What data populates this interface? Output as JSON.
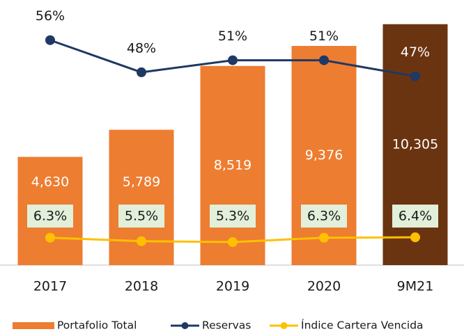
{
  "chart_data": {
    "type": "bar",
    "categories": [
      "2017",
      "2018",
      "2019",
      "2020",
      "9M21"
    ],
    "series": [
      {
        "name": "Portafolio Total",
        "type": "bar",
        "colors": [
          "#ed7d31",
          "#ed7d31",
          "#ed7d31",
          "#ed7d31",
          "#6b3410"
        ],
        "values": [
          4630,
          5789,
          8519,
          9376,
          10305
        ],
        "value_labels": [
          "4,630",
          "5,789",
          "8,519",
          "9,376",
          "10,305"
        ]
      },
      {
        "name": "Reservas",
        "type": "line",
        "axis": "y2",
        "color": "#1f3864",
        "values": [
          56,
          48,
          51,
          51,
          47
        ],
        "value_labels": [
          "56%",
          "48%",
          "51%",
          "51%",
          "47%"
        ]
      },
      {
        "name": "Índice Cartera Vencida",
        "type": "line",
        "axis": "y3",
        "color": "#ffc000",
        "values": [
          6.3,
          5.5,
          5.3,
          6.3,
          6.4
        ],
        "value_labels": [
          "6.3%",
          "5.5%",
          "5.3%",
          "6.3%",
          "6.4%"
        ]
      }
    ],
    "ylim": [
      0,
      11340
    ],
    "y2lim": [
      0,
      66
    ],
    "y3lim": [
      0,
      61
    ],
    "legend": "bottom"
  }
}
